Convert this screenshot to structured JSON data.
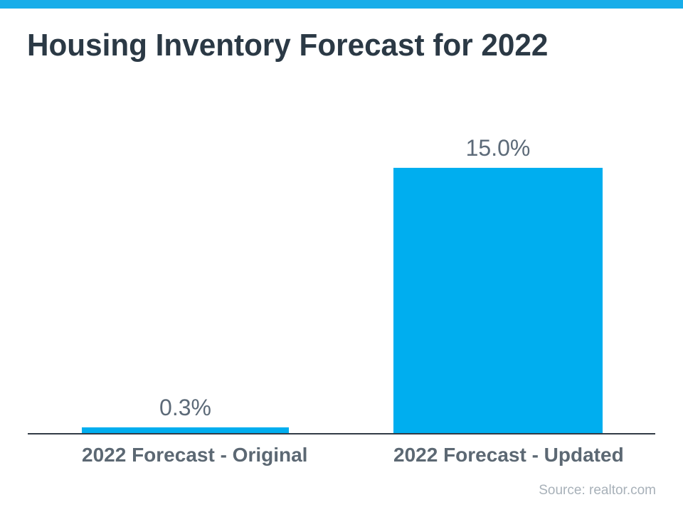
{
  "page": {
    "top_strip_color": "#17ADE9"
  },
  "chart_data": {
    "type": "bar",
    "title": "Housing Inventory Forecast for 2022",
    "categories": [
      "2022 Forecast - Original",
      "2022 Forecast - Updated"
    ],
    "values": [
      0.3,
      15.0
    ],
    "value_labels": [
      "0.3%",
      "15.0%"
    ],
    "ylim": [
      0,
      15.9
    ],
    "bar_color": "#00AEEF",
    "grid": "off",
    "legend": "none",
    "source": "Source: realtor.com",
    "colors": {
      "title": "#2B3945",
      "value_label": "#5C6A78",
      "category_label": "#5C6873",
      "axis_line": "#333C46",
      "source_text": "#A8B1B9"
    }
  }
}
